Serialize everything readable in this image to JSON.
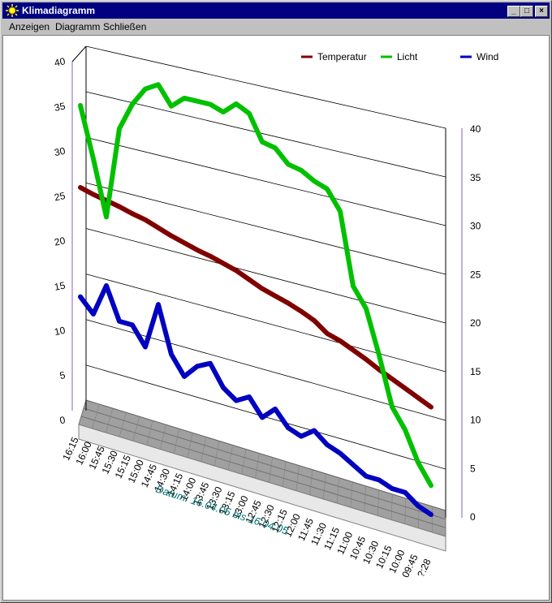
{
  "window": {
    "title": "Klimadiagramm",
    "menu": [
      "Anzeigen",
      "Diagramm",
      "Schließen"
    ],
    "buttons": [
      "minimize",
      "maximize",
      "close"
    ]
  },
  "chart_data": {
    "type": "line",
    "subtitle": "Datum:  16.04.05  bis  16.04.05",
    "x": [
      "16:15",
      "16:00",
      "15:45",
      "15:30",
      "15:15",
      "15:00",
      "14:45",
      "14:30",
      "14:15",
      "14:00",
      "13:45",
      "13:30",
      "13:15",
      "13:00",
      "12:45",
      "12:30",
      "12:15",
      "12:00",
      "11:45",
      "11:30",
      "11:15",
      "11:00",
      "10:45",
      "10:30",
      "10:15",
      "10:00",
      "09:45",
      "?:28"
    ],
    "y_left": {
      "range": [
        0,
        40
      ],
      "ticks": [
        0,
        5,
        10,
        15,
        20,
        25,
        30,
        35,
        40
      ]
    },
    "y_right": {
      "range": [
        0,
        40
      ],
      "ticks": [
        0,
        5,
        10,
        15,
        20,
        25,
        30,
        35,
        40
      ]
    },
    "legend": {
      "placement": "top-right"
    },
    "series": [
      {
        "name": "Temperatur",
        "color": "#800000",
        "values": [
          24.5,
          24.1,
          23.8,
          23.5,
          23.1,
          22.8,
          22.3,
          21.8,
          21.4,
          21.0,
          20.7,
          20.3,
          19.9,
          19.3,
          18.7,
          18.3,
          17.9,
          17.4,
          16.8,
          15.8,
          15.4,
          14.8,
          14.2,
          13.5,
          12.9,
          12.3,
          11.7,
          11.1
        ]
      },
      {
        "name": "Licht",
        "color": "#00c000",
        "values": [
          33.5,
          28,
          22,
          32,
          35,
          37,
          37.8,
          35.8,
          37,
          37,
          37,
          36.5,
          37.7,
          37,
          34.3,
          34,
          32.6,
          32.3,
          31.5,
          31,
          29,
          21.5,
          19.5,
          15,
          10,
          8,
          5,
          3
        ]
      },
      {
        "name": "Wind",
        "color": "#0000c0",
        "values": [
          12.5,
          11,
          14.5,
          11,
          11,
          9,
          14,
          9,
          7,
          8.5,
          9.2,
          7,
          6,
          6.8,
          5,
          6.3,
          4.7,
          4.2,
          5.2,
          4.1,
          3.6,
          2.8,
          2,
          2,
          1.5,
          1.5,
          0.5,
          0
        ]
      }
    ]
  }
}
